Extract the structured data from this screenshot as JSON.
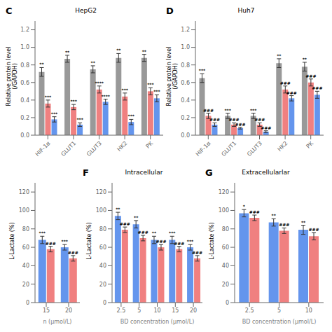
{
  "chart_data": [
    {
      "type": "bar",
      "title": "HepG2",
      "annotations": [
        "C"
      ],
      "ylabel": "Relative protein level\n(/GAPDH)",
      "categories": [
        "HIF-1α",
        "GLUT1",
        "GLUT3",
        "HK2",
        "PK"
      ],
      "series": [
        {
          "color": "#999999",
          "values": [
            0.72,
            0.87,
            0.75,
            0.88,
            0.88
          ],
          "errors": [
            0.05,
            0.04,
            0.04,
            0.05,
            0.04
          ],
          "annotations": [
            "**",
            "**",
            "**",
            "**",
            "**"
          ]
        },
        {
          "color": "#F08080",
          "values": [
            0.36,
            0.32,
            0.52,
            0.44,
            0.5
          ],
          "errors": [
            0.04,
            0.03,
            0.04,
            0.04,
            0.04
          ],
          "annotations": [
            "***",
            "***",
            "****",
            "***",
            "***"
          ]
        },
        {
          "color": "#6495ED",
          "values": [
            0.18,
            0.12,
            0.38,
            0.15,
            0.42
          ],
          "errors": [
            0.03,
            0.02,
            0.03,
            0.03,
            0.04
          ],
          "annotations": [
            "***",
            "***",
            "****",
            "***",
            "***"
          ]
        }
      ],
      "ylim": [
        0,
        1.3
      ],
      "yticks": [
        {
          "value": 0,
          "label": "0.0"
        },
        0.2,
        0.4,
        0.6,
        0.8,
        {
          "value": 1,
          "label": "1.0"
        },
        1.2
      ]
    },
    {
      "type": "bar",
      "title": "Huh7",
      "annotations": [
        "D"
      ],
      "ylabel": "Relative protein level\n(/GAPDH)",
      "categories": [
        "HIF-1α",
        "GLUT1",
        "GLUT3",
        "HK2",
        "PK"
      ],
      "series": [
        {
          "color": "#999999",
          "values": [
            0.65,
            0.22,
            0.22,
            0.82,
            0.78
          ],
          "errors": [
            0.05,
            0.03,
            0.03,
            0.05,
            0.05
          ],
          "annotations": [
            "***",
            "***",
            "***",
            "**",
            "**"
          ]
        },
        {
          "color": "#F08080",
          "values": [
            0.22,
            0.12,
            0.12,
            0.52,
            0.6
          ],
          "errors": [
            0.03,
            0.02,
            0.02,
            0.04,
            0.04
          ],
          "annotations": [
            "###",
            "###",
            "###",
            "###",
            "###"
          ]
        },
        {
          "color": "#6495ED",
          "values": [
            0.12,
            0.08,
            0.04,
            0.42,
            0.46
          ],
          "errors": [
            0.02,
            0.01,
            0.01,
            0.03,
            0.04
          ],
          "annotations": [
            "###",
            "###",
            "###",
            "###",
            "###"
          ]
        }
      ],
      "ylim": [
        0,
        1.3
      ],
      "yticks": [
        {
          "value": 0,
          "label": "0.0"
        },
        0.2,
        0.4,
        0.6,
        0.8,
        {
          "value": 1,
          "label": "1.0"
        },
        1.2
      ]
    },
    {
      "type": "bar",
      "xlabel": "n (μmol/L)",
      "ylabel": "L-Lactate (%)",
      "categories": [
        "15",
        "20"
      ],
      "series": [
        {
          "color": "#6495ED",
          "values": [
            68,
            60
          ],
          "errors": [
            4,
            3
          ],
          "annotations": [
            "***",
            "***"
          ]
        },
        {
          "color": "#F08080",
          "values": [
            58,
            48
          ],
          "errors": [
            3,
            3
          ],
          "annotations": [
            "###",
            "###"
          ]
        }
      ],
      "ylim": [
        0,
        130
      ],
      "yticks": [
        0,
        20,
        40,
        60,
        80,
        100,
        120
      ]
    },
    {
      "type": "bar",
      "title": "Intracellular",
      "annotations": [
        "F"
      ],
      "xlabel": "BD concentration (μmol/L)",
      "ylabel": "L-Lactate (%)",
      "categories": [
        "2.5",
        "5",
        "10",
        "15",
        "20"
      ],
      "series": [
        {
          "color": "#6495ED",
          "values": [
            94,
            85,
            68,
            68,
            60
          ],
          "errors": [
            4,
            4,
            4,
            4,
            3
          ],
          "annotations": [
            "**",
            "**",
            "**",
            "***",
            "***"
          ]
        },
        {
          "color": "#F08080",
          "values": [
            79,
            70,
            60,
            58,
            48
          ],
          "errors": [
            3,
            3,
            3,
            3,
            3
          ],
          "annotations": [
            "###",
            "###",
            "###",
            "###",
            "###"
          ]
        }
      ],
      "ylim": [
        0,
        130
      ],
      "yticks": [
        0,
        20,
        40,
        60,
        80,
        100,
        120
      ]
    },
    {
      "type": "bar",
      "title": "Extracellularlar",
      "annotations": [
        "G"
      ],
      "xlabel": "BD concentration (μmol/L)",
      "ylabel": "L-Lactate (%)",
      "categories": [
        "2.5",
        "5",
        "10"
      ],
      "series": [
        {
          "color": "#6495ED",
          "values": [
            97,
            87,
            79
          ],
          "errors": [
            4,
            4,
            5
          ],
          "annotations": [
            "*",
            "**",
            "**"
          ]
        },
        {
          "color": "#F08080",
          "values": [
            92,
            78,
            72
          ],
          "errors": [
            3,
            3,
            4
          ],
          "annotations": [
            "###",
            "###",
            "###"
          ]
        }
      ],
      "ylim": [
        0,
        130
      ],
      "yticks": [
        0,
        20,
        40,
        60,
        80,
        100,
        120
      ]
    }
  ]
}
